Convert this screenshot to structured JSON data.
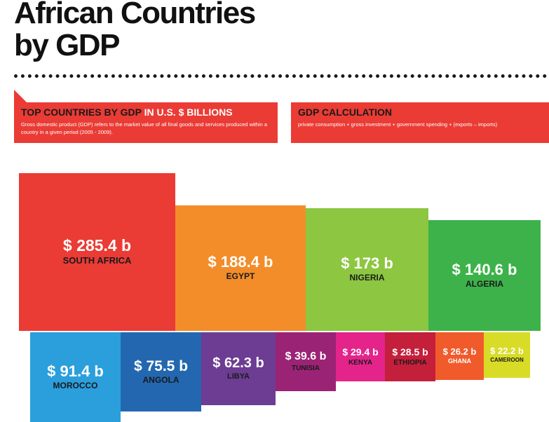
{
  "header": {
    "title_line1": "African Countries",
    "title_line2": "by GDP"
  },
  "banner_left": {
    "title_dark": "TOP COUNTRIES BY GDP",
    "title_highlight": "IN U.S. $ BILLIONS",
    "text": "Gross domestic product (GDP) refers to the market value of all final goods and services produced within a country in a given period (2005 - 2009)."
  },
  "banner_right": {
    "title": "GDP CALCULATION",
    "text": "private consumption + gross investment + government spending + (exports – imports)"
  },
  "chart_data": {
    "type": "bar",
    "title": "African Countries by GDP",
    "unit": "U.S. $ billions",
    "categories": [
      "SOUTH AFRICA",
      "EGYPT",
      "NIGERIA",
      "ALGERIA",
      "MOROCCO",
      "ANGOLA",
      "LIBYA",
      "TUNISIA",
      "KENYA",
      "ETHIOPIA",
      "GHANA",
      "CAMEROON"
    ],
    "values": [
      285.4,
      188.4,
      173,
      140.6,
      91.4,
      75.5,
      62.3,
      39.6,
      29.4,
      28.5,
      26.2,
      22.2
    ],
    "labels": [
      "$ 285.4 b",
      "$ 188.4 b",
      "$ 173 b",
      "$ 140.6 b",
      "$ 91.4 b",
      "$ 75.5 b",
      "$ 62.3 b",
      "$ 39.6 b",
      "$ 29.4 b",
      "$ 28.5 b",
      "$ 26.2 b",
      "$ 22.2 b"
    ],
    "colors": [
      "#ea3b35",
      "#f28d2a",
      "#8dc640",
      "#3db24a",
      "#2a9fdc",
      "#2367b0",
      "#6c3d93",
      "#9b2375",
      "#e4248b",
      "#c41f3b",
      "#f15a2b",
      "#d8dc27"
    ],
    "label_colors": [
      "#ffffff",
      "#ffffff",
      "#ffffff",
      "#ffffff",
      "#ffffff",
      "#ffffff",
      "#ffffff",
      "#ffffff",
      "#ffffff",
      "#ffffff",
      "#ffffff",
      "#ffffff"
    ],
    "name_colors": [
      "#1a1a1a",
      "#1a1a1a",
      "#1a1a1a",
      "#1a1a1a",
      "#1a1a1a",
      "#1a1a1a",
      "#1a1a1a",
      "#1a1a1a",
      "#1a1a1a",
      "#1a1a1a",
      "#ffffff",
      "#1a1a1a"
    ]
  }
}
